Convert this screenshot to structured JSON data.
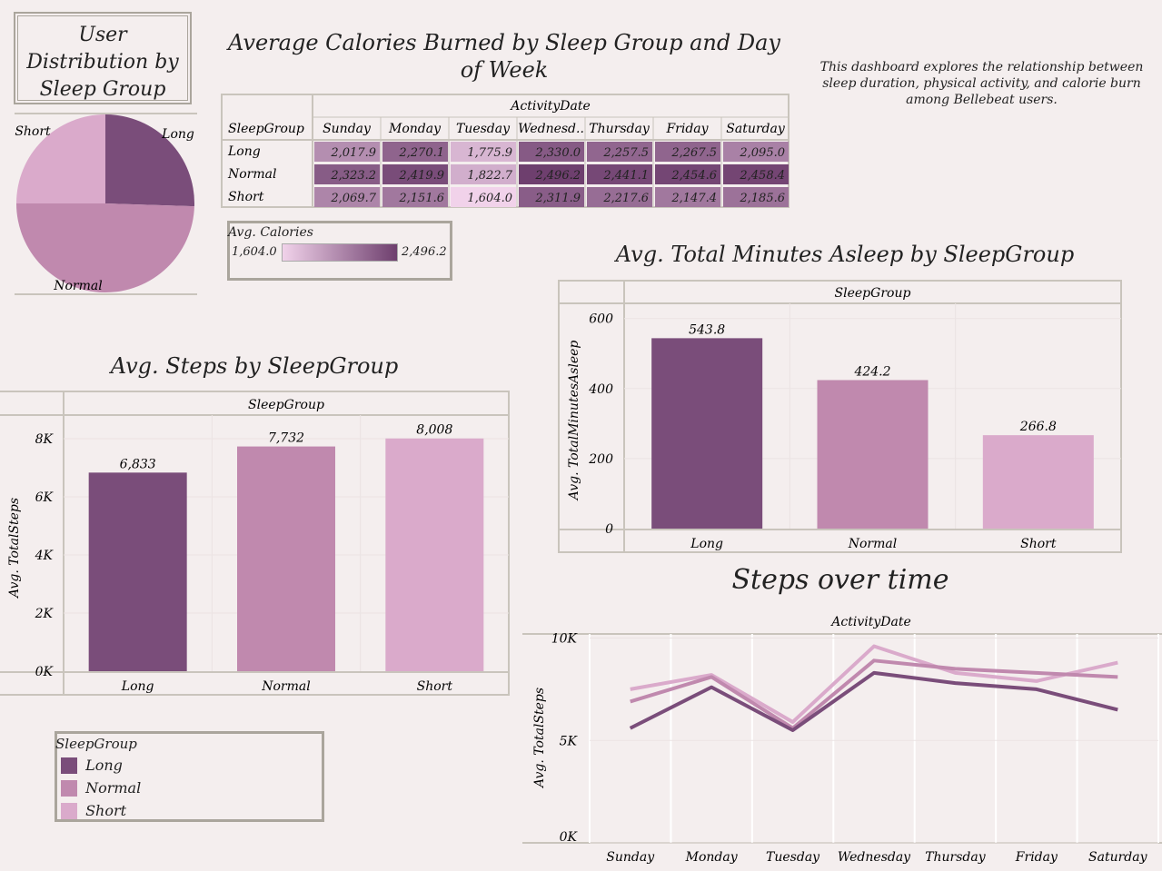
{
  "titles": {
    "pie": "User Distribution by Sleep Group",
    "heatmap": "Average Calories Burned by Sleep Group and Day of Week",
    "asleep": "Avg. Total Minutes Asleep by SleepGroup",
    "steps": "Avg. Steps by SleepGroup",
    "timeline": "Steps over time"
  },
  "description": "This dashboard explores the relationship between sleep duration, physical activity, and calorie burn among Bellebeat users.",
  "colors": {
    "Long": "#7a4d7a",
    "Normal": "#c089ae",
    "Short": "#daaacb",
    "background": "#f4eeee",
    "frame": "#aaa59c"
  },
  "legend": {
    "title": "SleepGroup",
    "items": [
      "Long",
      "Normal",
      "Short"
    ]
  },
  "calorie_legend": {
    "title": "Avg. Calories",
    "min": "1,604.0",
    "max": "2,496.2"
  },
  "chart_data": [
    {
      "type": "pie",
      "categories": [
        "Long",
        "Normal",
        "Short"
      ],
      "values": [
        25.5,
        49.5,
        25.0
      ]
    },
    {
      "type": "heatmap",
      "row_header": "SleepGroup",
      "column_header": "ActivityDate",
      "columns": [
        "Sunday",
        "Monday",
        "Tuesday",
        "Wednesd..",
        "Thursday",
        "Friday",
        "Saturday"
      ],
      "rows": [
        "Long",
        "Normal",
        "Short"
      ],
      "values": [
        [
          2017.9,
          2270.1,
          1775.9,
          2330.0,
          2257.5,
          2267.5,
          2095.0
        ],
        [
          2323.2,
          2419.9,
          1822.7,
          2496.2,
          2441.1,
          2454.6,
          2458.4
        ],
        [
          2069.7,
          2151.6,
          1604.0,
          2311.9,
          2217.6,
          2147.4,
          2185.6
        ]
      ],
      "labels": [
        [
          "2,017.9",
          "2,270.1",
          "1,775.9",
          "2,330.0",
          "2,257.5",
          "2,267.5",
          "2,095.0"
        ],
        [
          "2,323.2",
          "2,419.9",
          "1,822.7",
          "2,496.2",
          "2,441.1",
          "2,454.6",
          "2,458.4"
        ],
        [
          "2,069.7",
          "2,151.6",
          "1,604.0",
          "2,311.9",
          "2,217.6",
          "2,147.4",
          "2,185.6"
        ]
      ],
      "range": [
        1604.0,
        2496.2
      ]
    },
    {
      "type": "bar",
      "xlabel": "SleepGroup",
      "ylabel": "Avg. TotalMinutesAsleep",
      "categories": [
        "Long",
        "Normal",
        "Short"
      ],
      "values": [
        543.8,
        424.2,
        266.8
      ],
      "labels": [
        "543.8",
        "424.2",
        "266.8"
      ],
      "ylim": [
        0,
        620
      ],
      "yticks": [
        0,
        200,
        400,
        600
      ],
      "ytick_labels": [
        "0",
        "200",
        "400",
        "600"
      ]
    },
    {
      "type": "bar",
      "xlabel": "SleepGroup",
      "ylabel": "Avg. TotalSteps",
      "categories": [
        "Long",
        "Normal",
        "Short"
      ],
      "values": [
        6833,
        7732,
        8008
      ],
      "labels": [
        "6,833",
        "7,732",
        "8,008"
      ],
      "ylim": [
        0,
        8500
      ],
      "yticks": [
        0,
        2000,
        4000,
        6000,
        8000
      ],
      "ytick_labels": [
        "0K",
        "2K",
        "4K",
        "6K",
        "8K"
      ]
    },
    {
      "type": "line",
      "xlabel": "ActivityDate",
      "ylabel": "Avg. TotalSteps",
      "x": [
        "Sunday",
        "Monday",
        "Tuesday",
        "Wednesday",
        "Thursday",
        "Friday",
        "Saturday"
      ],
      "series": [
        {
          "name": "Long",
          "values": [
            5600,
            7600,
            5500,
            8300,
            7800,
            7500,
            6500
          ]
        },
        {
          "name": "Normal",
          "values": [
            6900,
            8100,
            5600,
            8900,
            8500,
            8300,
            8100
          ]
        },
        {
          "name": "Short",
          "values": [
            7500,
            8200,
            5900,
            9600,
            8300,
            7900,
            8800
          ]
        }
      ],
      "ylim": [
        0,
        10200
      ],
      "yticks": [
        0,
        5000,
        10000
      ],
      "ytick_labels": [
        "0K",
        "5K",
        "10K"
      ]
    }
  ]
}
